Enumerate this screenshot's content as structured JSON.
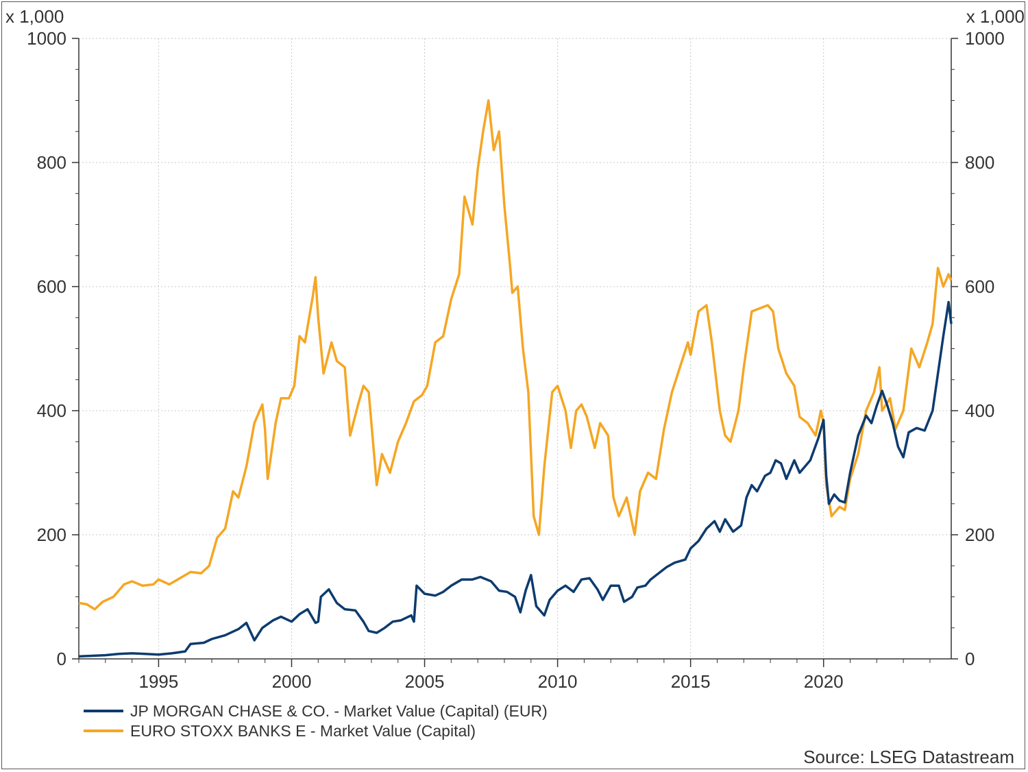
{
  "chart_data": {
    "type": "line",
    "source": "Source: LSEG Datastream",
    "y_multiplier_left": "x 1,000",
    "y_multiplier_right": "x 1,000",
    "ylim": [
      0,
      1000
    ],
    "yticks": [
      0,
      200,
      400,
      600,
      800,
      1000
    ],
    "xlim": [
      1992.0,
      2024.8
    ],
    "xticks": [
      1995,
      2000,
      2005,
      2010,
      2015,
      2020
    ],
    "grid": true,
    "legend_position": "bottom-left",
    "series": [
      {
        "name": "JP MORGAN CHASE & CO. - Market Value (Capital) (EUR)",
        "color": "#0d3b6e",
        "points": [
          [
            1992.0,
            4
          ],
          [
            1992.5,
            5
          ],
          [
            1993.0,
            6
          ],
          [
            1993.5,
            8
          ],
          [
            1994.0,
            9
          ],
          [
            1994.5,
            8
          ],
          [
            1995.0,
            7
          ],
          [
            1995.5,
            9
          ],
          [
            1996.0,
            12
          ],
          [
            1996.2,
            24
          ],
          [
            1996.7,
            26
          ],
          [
            1997.0,
            32
          ],
          [
            1997.5,
            38
          ],
          [
            1998.0,
            48
          ],
          [
            1998.3,
            58
          ],
          [
            1998.6,
            30
          ],
          [
            1998.9,
            50
          ],
          [
            1999.3,
            62
          ],
          [
            1999.6,
            68
          ],
          [
            2000.0,
            60
          ],
          [
            2000.3,
            72
          ],
          [
            2000.6,
            80
          ],
          [
            2000.9,
            58
          ],
          [
            2001.0,
            60
          ],
          [
            2001.1,
            100
          ],
          [
            2001.4,
            112
          ],
          [
            2001.7,
            90
          ],
          [
            2002.0,
            80
          ],
          [
            2002.4,
            78
          ],
          [
            2002.7,
            60
          ],
          [
            2002.9,
            45
          ],
          [
            2003.2,
            42
          ],
          [
            2003.5,
            50
          ],
          [
            2003.8,
            60
          ],
          [
            2004.1,
            62
          ],
          [
            2004.5,
            70
          ],
          [
            2004.6,
            60
          ],
          [
            2004.7,
            118
          ],
          [
            2005.0,
            105
          ],
          [
            2005.4,
            102
          ],
          [
            2005.7,
            108
          ],
          [
            2006.0,
            118
          ],
          [
            2006.4,
            128
          ],
          [
            2006.8,
            128
          ],
          [
            2007.1,
            132
          ],
          [
            2007.5,
            125
          ],
          [
            2007.8,
            110
          ],
          [
            2008.1,
            108
          ],
          [
            2008.4,
            100
          ],
          [
            2008.6,
            75
          ],
          [
            2008.8,
            110
          ],
          [
            2009.0,
            135
          ],
          [
            2009.2,
            85
          ],
          [
            2009.5,
            70
          ],
          [
            2009.7,
            95
          ],
          [
            2010.0,
            110
          ],
          [
            2010.3,
            118
          ],
          [
            2010.6,
            108
          ],
          [
            2010.9,
            128
          ],
          [
            2011.2,
            130
          ],
          [
            2011.5,
            112
          ],
          [
            2011.7,
            95
          ],
          [
            2012.0,
            118
          ],
          [
            2012.3,
            118
          ],
          [
            2012.5,
            92
          ],
          [
            2012.8,
            100
          ],
          [
            2013.0,
            115
          ],
          [
            2013.3,
            118
          ],
          [
            2013.5,
            128
          ],
          [
            2013.8,
            138
          ],
          [
            2014.1,
            148
          ],
          [
            2014.4,
            155
          ],
          [
            2014.8,
            160
          ],
          [
            2015.0,
            178
          ],
          [
            2015.3,
            190
          ],
          [
            2015.6,
            210
          ],
          [
            2015.9,
            222
          ],
          [
            2016.1,
            205
          ],
          [
            2016.3,
            225
          ],
          [
            2016.6,
            205
          ],
          [
            2016.9,
            215
          ],
          [
            2017.1,
            260
          ],
          [
            2017.3,
            280
          ],
          [
            2017.5,
            270
          ],
          [
            2017.8,
            295
          ],
          [
            2018.0,
            300
          ],
          [
            2018.2,
            320
          ],
          [
            2018.4,
            315
          ],
          [
            2018.6,
            290
          ],
          [
            2018.9,
            320
          ],
          [
            2019.1,
            300
          ],
          [
            2019.5,
            320
          ],
          [
            2019.8,
            355
          ],
          [
            2020.0,
            385
          ],
          [
            2020.1,
            295
          ],
          [
            2020.2,
            250
          ],
          [
            2020.4,
            265
          ],
          [
            2020.6,
            255
          ],
          [
            2020.8,
            252
          ],
          [
            2021.0,
            300
          ],
          [
            2021.3,
            360
          ],
          [
            2021.6,
            392
          ],
          [
            2021.8,
            380
          ],
          [
            2022.0,
            408
          ],
          [
            2022.2,
            432
          ],
          [
            2022.4,
            408
          ],
          [
            2022.6,
            380
          ],
          [
            2022.8,
            342
          ],
          [
            2023.0,
            325
          ],
          [
            2023.2,
            365
          ],
          [
            2023.5,
            372
          ],
          [
            2023.8,
            368
          ],
          [
            2024.1,
            400
          ],
          [
            2024.3,
            460
          ],
          [
            2024.5,
            520
          ],
          [
            2024.7,
            575
          ],
          [
            2024.8,
            540
          ]
        ]
      },
      {
        "name": "EURO STOXX BANKS E - Market Value (Capital)",
        "color": "#f5a623",
        "points": [
          [
            1992.0,
            90
          ],
          [
            1992.3,
            88
          ],
          [
            1992.6,
            80
          ],
          [
            1992.9,
            92
          ],
          [
            1993.3,
            100
          ],
          [
            1993.7,
            120
          ],
          [
            1994.0,
            125
          ],
          [
            1994.4,
            118
          ],
          [
            1994.8,
            120
          ],
          [
            1995.0,
            128
          ],
          [
            1995.4,
            120
          ],
          [
            1995.8,
            130
          ],
          [
            1996.2,
            140
          ],
          [
            1996.6,
            138
          ],
          [
            1996.9,
            150
          ],
          [
            1997.2,
            195
          ],
          [
            1997.5,
            210
          ],
          [
            1997.8,
            270
          ],
          [
            1998.0,
            260
          ],
          [
            1998.3,
            310
          ],
          [
            1998.6,
            380
          ],
          [
            1998.9,
            410
          ],
          [
            1999.0,
            370
          ],
          [
            1999.1,
            290
          ],
          [
            1999.4,
            380
          ],
          [
            1999.6,
            420
          ],
          [
            1999.9,
            420
          ],
          [
            2000.1,
            440
          ],
          [
            2000.3,
            520
          ],
          [
            2000.5,
            510
          ],
          [
            2000.8,
            585
          ],
          [
            2000.9,
            615
          ],
          [
            2001.0,
            550
          ],
          [
            2001.2,
            460
          ],
          [
            2001.5,
            510
          ],
          [
            2001.7,
            480
          ],
          [
            2002.0,
            470
          ],
          [
            2002.2,
            360
          ],
          [
            2002.5,
            410
          ],
          [
            2002.7,
            440
          ],
          [
            2002.9,
            430
          ],
          [
            2003.1,
            330
          ],
          [
            2003.2,
            280
          ],
          [
            2003.4,
            330
          ],
          [
            2003.7,
            300
          ],
          [
            2004.0,
            350
          ],
          [
            2004.3,
            380
          ],
          [
            2004.6,
            415
          ],
          [
            2004.9,
            425
          ],
          [
            2005.1,
            440
          ],
          [
            2005.4,
            510
          ],
          [
            2005.7,
            520
          ],
          [
            2006.0,
            580
          ],
          [
            2006.3,
            620
          ],
          [
            2006.5,
            745
          ],
          [
            2006.8,
            700
          ],
          [
            2007.0,
            790
          ],
          [
            2007.2,
            850
          ],
          [
            2007.4,
            900
          ],
          [
            2007.6,
            820
          ],
          [
            2007.8,
            850
          ],
          [
            2008.0,
            730
          ],
          [
            2008.2,
            640
          ],
          [
            2008.3,
            590
          ],
          [
            2008.5,
            600
          ],
          [
            2008.7,
            500
          ],
          [
            2008.9,
            430
          ],
          [
            2009.1,
            230
          ],
          [
            2009.3,
            200
          ],
          [
            2009.5,
            310
          ],
          [
            2009.8,
            430
          ],
          [
            2010.0,
            440
          ],
          [
            2010.3,
            400
          ],
          [
            2010.5,
            340
          ],
          [
            2010.7,
            400
          ],
          [
            2010.9,
            410
          ],
          [
            2011.1,
            390
          ],
          [
            2011.4,
            340
          ],
          [
            2011.6,
            380
          ],
          [
            2011.9,
            360
          ],
          [
            2012.1,
            260
          ],
          [
            2012.3,
            230
          ],
          [
            2012.6,
            260
          ],
          [
            2012.9,
            200
          ],
          [
            2013.1,
            270
          ],
          [
            2013.4,
            300
          ],
          [
            2013.7,
            290
          ],
          [
            2014.0,
            370
          ],
          [
            2014.3,
            430
          ],
          [
            2014.6,
            470
          ],
          [
            2014.9,
            510
          ],
          [
            2015.0,
            490
          ],
          [
            2015.3,
            560
          ],
          [
            2015.6,
            570
          ],
          [
            2015.8,
            510
          ],
          [
            2016.1,
            400
          ],
          [
            2016.3,
            360
          ],
          [
            2016.5,
            350
          ],
          [
            2016.8,
            400
          ],
          [
            2017.0,
            470
          ],
          [
            2017.3,
            560
          ],
          [
            2017.6,
            565
          ],
          [
            2017.9,
            570
          ],
          [
            2018.1,
            560
          ],
          [
            2018.3,
            500
          ],
          [
            2018.6,
            460
          ],
          [
            2018.9,
            440
          ],
          [
            2019.1,
            390
          ],
          [
            2019.4,
            380
          ],
          [
            2019.7,
            360
          ],
          [
            2019.9,
            400
          ],
          [
            2020.0,
            380
          ],
          [
            2020.1,
            280
          ],
          [
            2020.3,
            230
          ],
          [
            2020.6,
            245
          ],
          [
            2020.8,
            240
          ],
          [
            2021.0,
            290
          ],
          [
            2021.3,
            330
          ],
          [
            2021.6,
            400
          ],
          [
            2021.9,
            430
          ],
          [
            2022.1,
            470
          ],
          [
            2022.2,
            400
          ],
          [
            2022.5,
            420
          ],
          [
            2022.7,
            370
          ],
          [
            2023.0,
            400
          ],
          [
            2023.3,
            500
          ],
          [
            2023.6,
            470
          ],
          [
            2023.9,
            510
          ],
          [
            2024.1,
            540
          ],
          [
            2024.3,
            630
          ],
          [
            2024.5,
            600
          ],
          [
            2024.7,
            620
          ],
          [
            2024.8,
            610
          ]
        ]
      }
    ]
  }
}
